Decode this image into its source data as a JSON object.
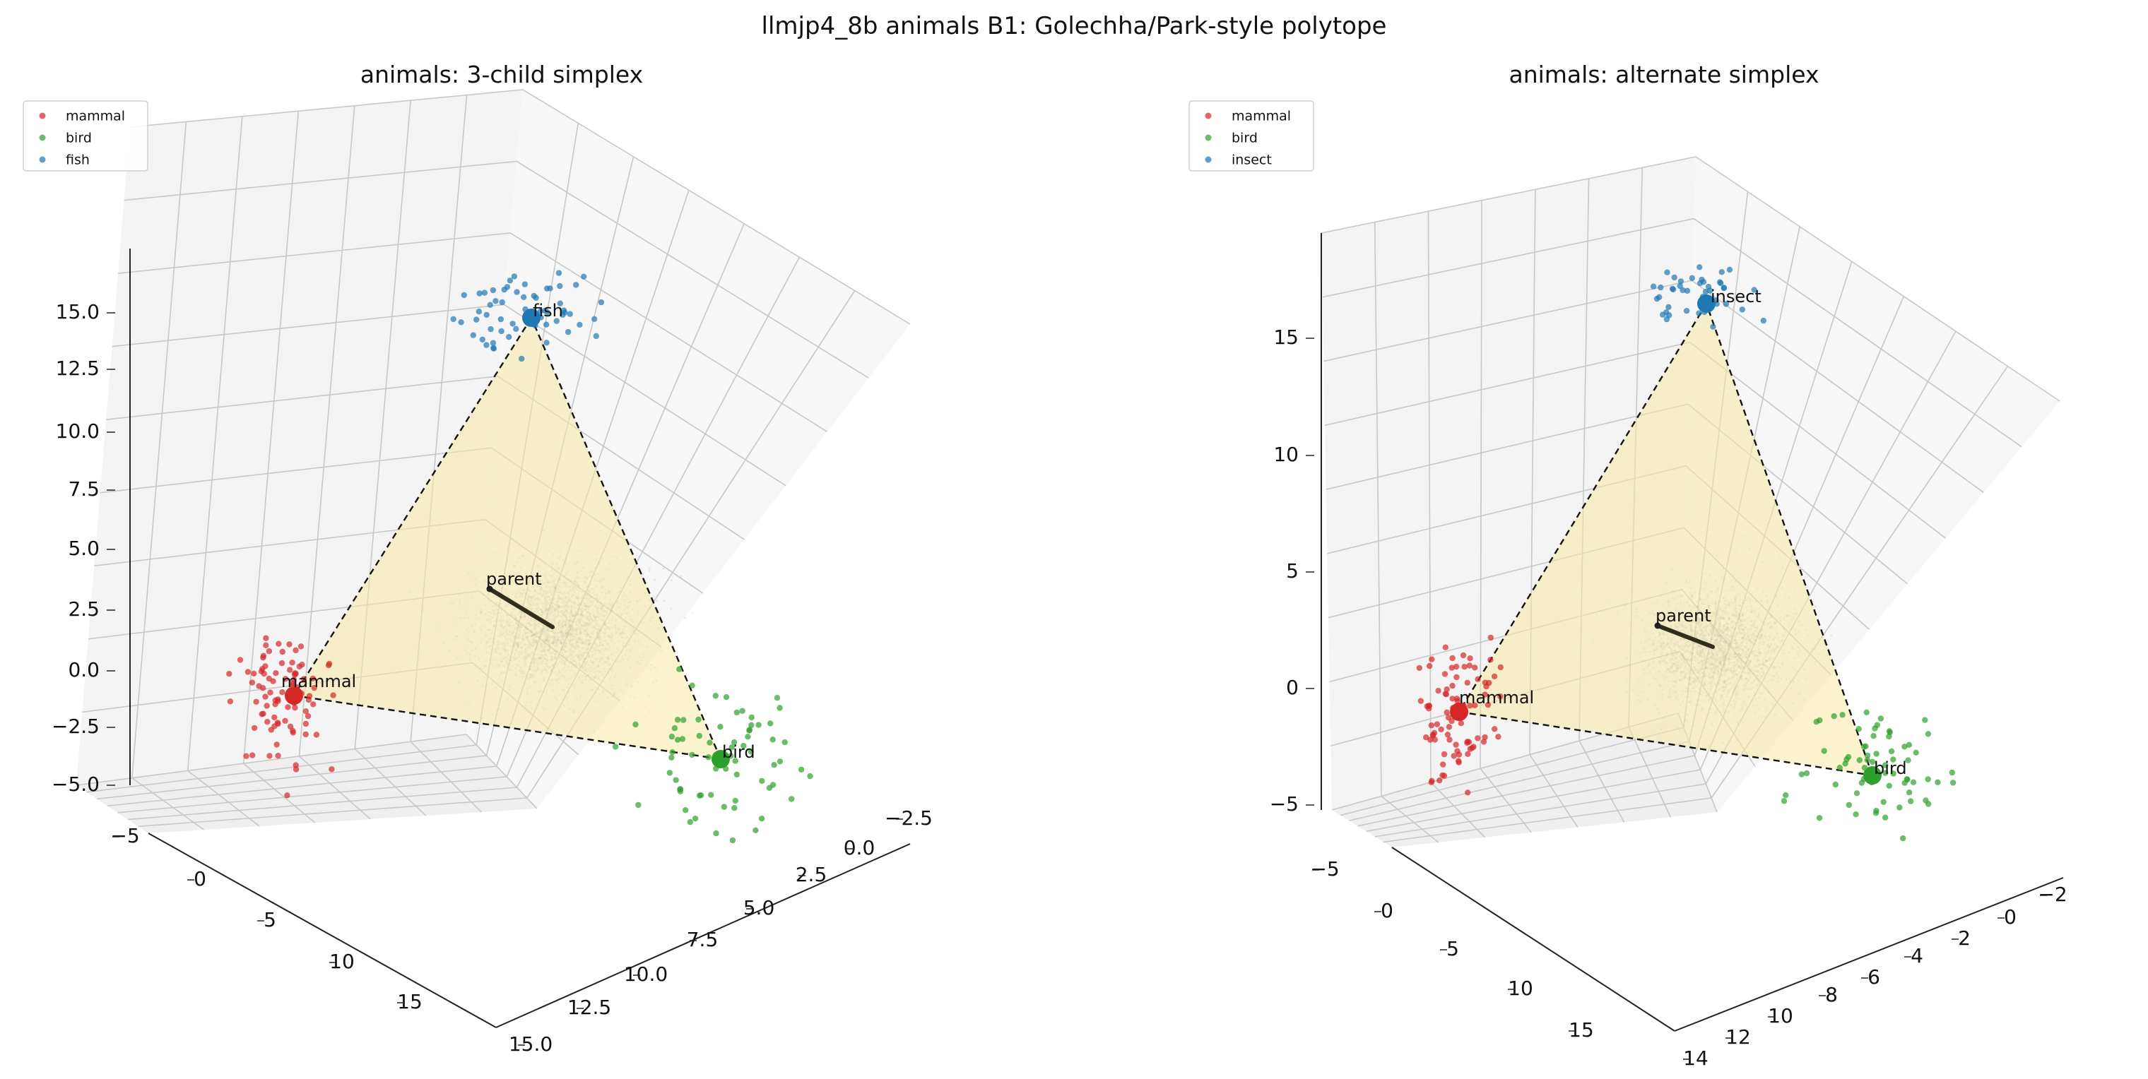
{
  "suptitle": "llmjp4_8b animals B1: Golechha/Park-style polytope",
  "colors": {
    "mammal": "#d62728",
    "bird": "#2ca02c",
    "fish": "#1f77b4",
    "simplex_fill": "#f6e9a6",
    "grid": "#c8c8c8",
    "pane": "#efefef",
    "background_cloud": "#707080",
    "parent_arrow": "#2f2f1c"
  },
  "chart_data": [
    {
      "type": "scatter3d",
      "title": "animals: 3-child simplex",
      "legend": {
        "placement": "top-left",
        "entries": [
          "mammal",
          "bird",
          "fish"
        ]
      },
      "axes": {
        "x": {
          "ticks": [
            "15.0",
            "12.5",
            "10.0",
            "7.5",
            "5.0",
            "2.5",
            "0.0",
            "−2.5"
          ]
        },
        "y": {
          "ticks": [
            "−5",
            "0",
            "5",
            "10",
            "15"
          ]
        },
        "z": {
          "ticks": [
            "15.0",
            "12.5",
            "10.0",
            "7.5",
            "5.0",
            "2.5",
            "0.0",
            "−2.5",
            "−5.0"
          ]
        }
      },
      "vertices": [
        {
          "label": "mammal",
          "color_key": "mammal",
          "x": 10.5,
          "y": 6.5,
          "z": -1.0
        },
        {
          "label": "bird",
          "color_key": "bird",
          "x": 1.5,
          "y": 13.0,
          "z": -2.0
        },
        {
          "label": "fish",
          "color_key": "fish",
          "x": 7.5,
          "y": -2.0,
          "z": 14.5
        }
      ],
      "parent": {
        "label": "parent",
        "x": 10.0,
        "y": -2.0,
        "z": 4.0
      },
      "grid": true
    },
    {
      "type": "scatter3d",
      "title": "animals: alternate simplex",
      "legend": {
        "placement": "top-left",
        "entries": [
          "mammal",
          "bird",
          "insect"
        ]
      },
      "axes": {
        "x": {
          "ticks": [
            "14",
            "12",
            "10",
            "8",
            "6",
            "4",
            "2",
            "0",
            "−2"
          ]
        },
        "y": {
          "ticks": [
            "−5",
            "0",
            "5",
            "10",
            "15"
          ]
        },
        "z": {
          "ticks": [
            "15",
            "10",
            "5",
            "0",
            "−5"
          ]
        }
      },
      "vertices": [
        {
          "label": "mammal",
          "color_key": "mammal",
          "x": 10.0,
          "y": 7.0,
          "z": -1.0
        },
        {
          "label": "bird",
          "color_key": "bird",
          "x": 1.0,
          "y": 13.0,
          "z": -2.0
        },
        {
          "label": "insect",
          "color_key": "fish",
          "x": 7.0,
          "y": -2.5,
          "z": 16.0
        }
      ],
      "parent": {
        "label": "parent",
        "x": 9.0,
        "y": -1.0,
        "z": 4.0
      },
      "grid": true
    }
  ]
}
